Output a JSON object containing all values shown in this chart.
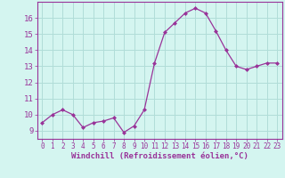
{
  "x": [
    0,
    1,
    2,
    3,
    4,
    5,
    6,
    7,
    8,
    9,
    10,
    11,
    12,
    13,
    14,
    15,
    16,
    17,
    18,
    19,
    20,
    21,
    22,
    23
  ],
  "y": [
    9.5,
    10.0,
    10.3,
    10.0,
    9.2,
    9.5,
    9.6,
    9.8,
    8.9,
    9.3,
    10.3,
    13.2,
    15.1,
    15.7,
    16.3,
    16.6,
    16.3,
    15.2,
    14.0,
    13.0,
    12.8,
    13.0,
    13.2,
    13.2
  ],
  "line_color": "#993399",
  "marker": "D",
  "marker_size": 2,
  "bg_color": "#d4f5f0",
  "grid_color": "#b0ddd8",
  "xlabel": "Windchill (Refroidissement éolien,°C)",
  "xlabel_color": "#993399",
  "tick_color": "#993399",
  "ylim": [
    8.5,
    17.0
  ],
  "xlim": [
    -0.5,
    23.5
  ],
  "yticks": [
    9,
    10,
    11,
    12,
    13,
    14,
    15,
    16
  ],
  "xticks": [
    0,
    1,
    2,
    3,
    4,
    5,
    6,
    7,
    8,
    9,
    10,
    11,
    12,
    13,
    14,
    15,
    16,
    17,
    18,
    19,
    20,
    21,
    22,
    23
  ],
  "xlabel_fontsize": 6.5,
  "tick_fontsize": 5.5,
  "ytick_fontsize": 6.5
}
